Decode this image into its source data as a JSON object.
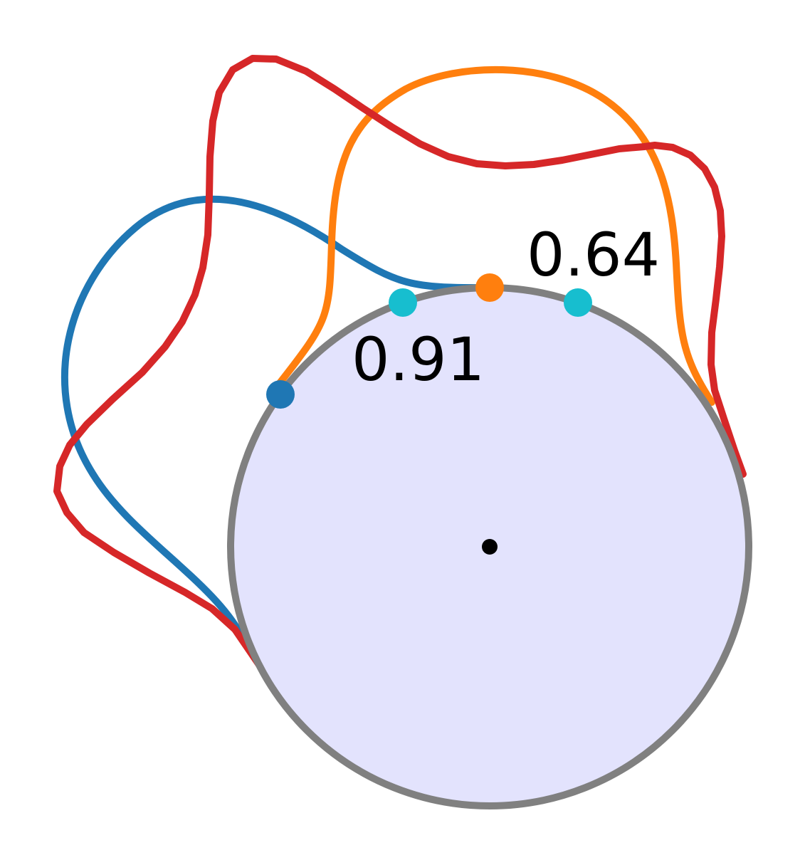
{
  "diagram": {
    "labels": {
      "right_value": "0.64",
      "left_value": "0.91"
    },
    "colors": {
      "circle_fill": "#e3e3fd",
      "circle_stroke": "#808080",
      "blue_curve": "#1f77b4",
      "orange_curve": "#ff7f0e",
      "red_curve": "#d62728",
      "cyan_marker": "#17becf",
      "center_dot": "#000000"
    },
    "curves": [
      "blue-loop",
      "orange-loop",
      "red-loop"
    ],
    "markers": [
      "blue-marker",
      "orange-marker",
      "cyan-marker-left",
      "cyan-marker-right",
      "center-dot"
    ]
  }
}
